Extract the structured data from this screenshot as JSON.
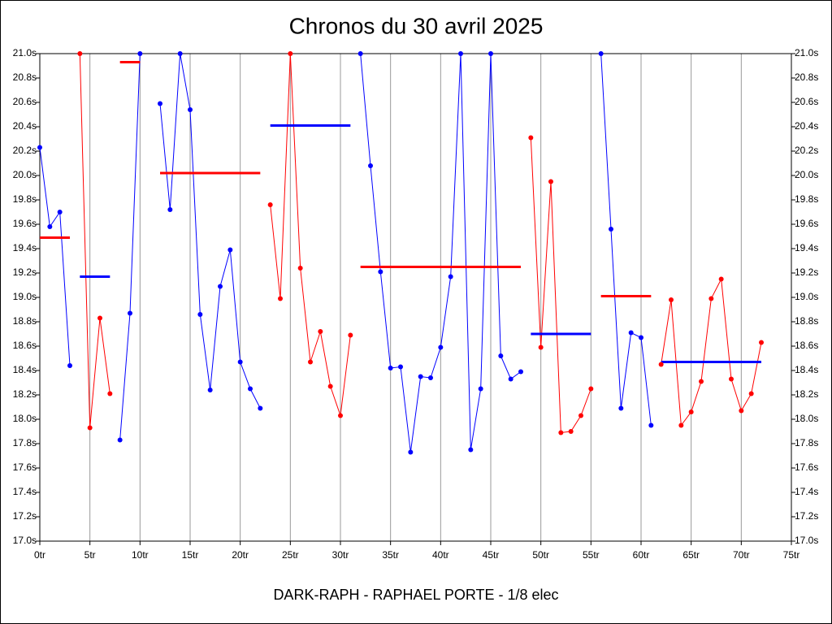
{
  "chart_data": {
    "type": "line",
    "title": "Chronos du 30 avril 2025",
    "x_label": "DARK-RAPH - RAPHAEL PORTE - 1/8 elec",
    "xlim": [
      0,
      75
    ],
    "ylim": [
      17.0,
      21.0
    ],
    "grid": "x",
    "xticks": [
      {
        "value": 0,
        "label": "0tr"
      },
      {
        "value": 5,
        "label": "5tr"
      },
      {
        "value": 10,
        "label": "10tr"
      },
      {
        "value": 15,
        "label": "15tr"
      },
      {
        "value": 20,
        "label": "20tr"
      },
      {
        "value": 25,
        "label": "25tr"
      },
      {
        "value": 30,
        "label": "30tr"
      },
      {
        "value": 35,
        "label": "35tr"
      },
      {
        "value": 40,
        "label": "40tr"
      },
      {
        "value": 45,
        "label": "45tr"
      },
      {
        "value": 50,
        "label": "50tr"
      },
      {
        "value": 55,
        "label": "55tr"
      },
      {
        "value": 60,
        "label": "60tr"
      },
      {
        "value": 65,
        "label": "65tr"
      },
      {
        "value": 70,
        "label": "70tr"
      },
      {
        "value": 75,
        "label": "75tr"
      }
    ],
    "yticks": [
      {
        "value": 17.0,
        "label": "17.0s"
      },
      {
        "value": 17.2,
        "label": "17.2s"
      },
      {
        "value": 17.4,
        "label": "17.4s"
      },
      {
        "value": 17.6,
        "label": "17.6s"
      },
      {
        "value": 17.8,
        "label": "17.8s"
      },
      {
        "value": 18.0,
        "label": "18.0s"
      },
      {
        "value": 18.2,
        "label": "18.2s"
      },
      {
        "value": 18.4,
        "label": "18.4s"
      },
      {
        "value": 18.6,
        "label": "18.6s"
      },
      {
        "value": 18.8,
        "label": "18.8s"
      },
      {
        "value": 19.0,
        "label": "19.0s"
      },
      {
        "value": 19.2,
        "label": "19.2s"
      },
      {
        "value": 19.4,
        "label": "19.4s"
      },
      {
        "value": 19.6,
        "label": "19.6s"
      },
      {
        "value": 19.8,
        "label": "19.8s"
      },
      {
        "value": 20.0,
        "label": "20.0s"
      },
      {
        "value": 20.2,
        "label": "20.2s"
      },
      {
        "value": 20.4,
        "label": "20.4s"
      },
      {
        "value": 20.6,
        "label": "20.6s"
      },
      {
        "value": 20.8,
        "label": "20.8s"
      },
      {
        "value": 21.0,
        "label": "21.0s"
      }
    ],
    "series": [
      {
        "color": "#0000ff",
        "mean_color": "#ff0000",
        "x": [
          0,
          1,
          2,
          3
        ],
        "values": [
          20.23,
          19.58,
          19.7,
          18.44
        ],
        "mean": 19.49
      },
      {
        "color": "#ff0000",
        "mean_color": "#0000ff",
        "x": [
          4,
          5,
          6,
          7
        ],
        "values": [
          21.0,
          17.93,
          18.83,
          18.21
        ],
        "mean": 19.17
      },
      {
        "color": "#0000ff",
        "mean_color": "#ff0000",
        "x": [
          8,
          9,
          10
        ],
        "values": [
          17.83,
          18.87,
          21.0
        ],
        "mean": 20.93
      },
      {
        "color": "#0000ff",
        "mean_color": "#ff0000",
        "x": [
          12,
          13,
          14,
          15,
          16,
          17,
          18,
          19,
          20,
          21,
          22
        ],
        "values": [
          20.59,
          19.72,
          21.0,
          20.54,
          18.86,
          18.24,
          19.09,
          19.39,
          18.47,
          18.25,
          18.09
        ],
        "mean": 20.02
      },
      {
        "color": "#ff0000",
        "mean_color": "#0000ff",
        "x": [
          23,
          24,
          25,
          26,
          27,
          28,
          29,
          30,
          31
        ],
        "values": [
          19.76,
          18.99,
          21.0,
          19.24,
          18.47,
          18.72,
          18.27,
          18.03,
          18.69
        ],
        "mean": 20.41
      },
      {
        "color": "#0000ff",
        "mean_color": "#ff0000",
        "x": [
          32,
          33,
          34,
          35,
          36,
          37,
          38,
          39,
          40,
          41,
          42,
          43,
          44,
          45,
          46,
          47,
          48
        ],
        "values": [
          21.0,
          20.08,
          19.21,
          18.42,
          18.43,
          17.73,
          18.35,
          18.34,
          18.59,
          19.17,
          21.0,
          17.75,
          18.25,
          21.0,
          18.52,
          18.33,
          18.39
        ],
        "mean": 19.25
      },
      {
        "color": "#ff0000",
        "mean_color": "#0000ff",
        "x": [
          49,
          50,
          51,
          52,
          53,
          54,
          55
        ],
        "values": [
          20.31,
          18.59,
          19.95,
          17.89,
          17.9,
          18.03,
          18.25
        ],
        "mean": 18.7
      },
      {
        "color": "#0000ff",
        "mean_color": "#ff0000",
        "x": [
          56,
          57,
          58,
          59,
          60,
          61
        ],
        "values": [
          21.0,
          19.56,
          18.09,
          18.71,
          18.67,
          17.95
        ],
        "mean": 19.01
      },
      {
        "color": "#ff0000",
        "mean_color": "#0000ff",
        "x": [
          62,
          63,
          64,
          65,
          66,
          67,
          68,
          69,
          70,
          71,
          72
        ],
        "values": [
          18.45,
          18.98,
          17.95,
          18.06,
          18.31,
          18.99,
          19.15,
          18.33,
          18.07,
          18.21,
          18.63
        ],
        "mean": 18.47
      }
    ]
  }
}
